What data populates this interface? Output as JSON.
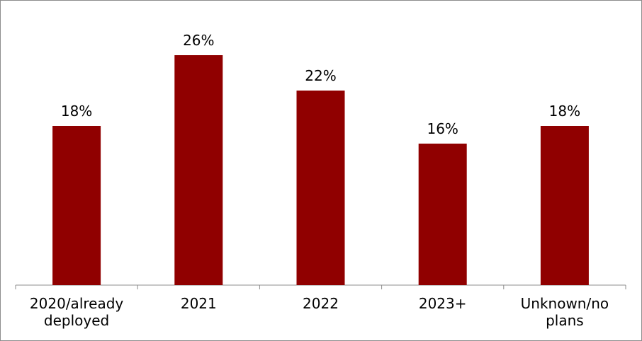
{
  "chart_data": {
    "type": "bar",
    "categories": [
      "2020/already deployed",
      "2021",
      "2022",
      "2023+",
      "Unknown/no plans"
    ],
    "values": [
      18,
      26,
      22,
      16,
      18
    ],
    "value_labels": [
      "18%",
      "26%",
      "22%",
      "16%",
      "18%"
    ],
    "color": "#900000"
  }
}
